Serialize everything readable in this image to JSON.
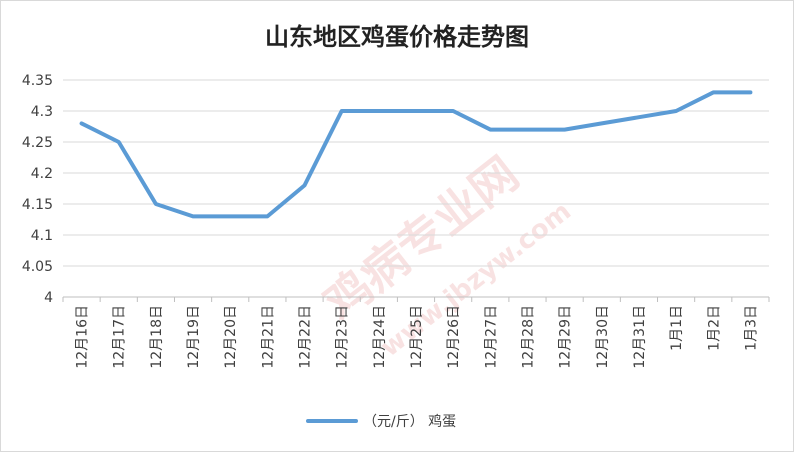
{
  "chart_data": {
    "type": "line",
    "title": "山东地区鸡蛋价格走势图",
    "categories": [
      "12月16日",
      "12月17日",
      "12月18日",
      "12月19日",
      "12月20日",
      "12月21日",
      "12月22日",
      "12月23日",
      "12月24日",
      "12月25日",
      "12月26日",
      "12月27日",
      "12月28日",
      "12月29日",
      "12月30日",
      "12月31日",
      "1月1日",
      "1月2日",
      "1月3日"
    ],
    "series": [
      {
        "name": "（元/斤） 鸡蛋",
        "color": "#5b9bd5",
        "values": [
          4.28,
          4.25,
          4.15,
          4.13,
          4.13,
          4.13,
          4.18,
          4.3,
          4.3,
          4.3,
          4.3,
          4.27,
          4.27,
          4.27,
          4.28,
          4.29,
          4.3,
          4.33,
          4.33
        ]
      }
    ],
    "ylim": [
      4.0,
      4.35
    ],
    "yticks": [
      "4",
      "4.05",
      "4.1",
      "4.15",
      "4.2",
      "4.25",
      "4.3",
      "4.35"
    ],
    "grid": true,
    "legend_position": "bottom"
  },
  "watermark": {
    "text": "鸡病专业网",
    "url": "www.jbzyw.com"
  }
}
